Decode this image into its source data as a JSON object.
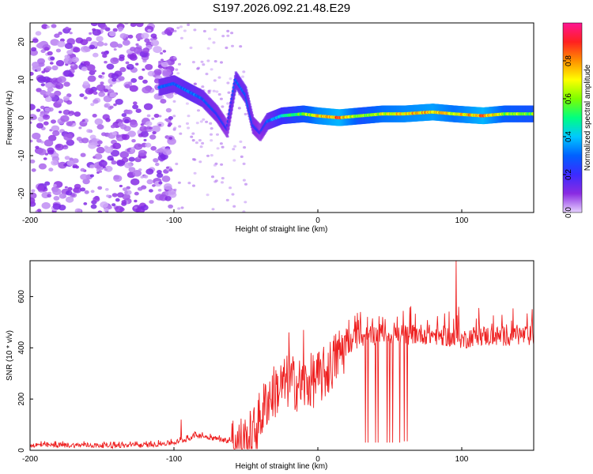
{
  "title": "S197.2026.092.21.48.E29",
  "chart_data": [
    {
      "type": "heatmap",
      "description_kind": "spectrogram",
      "xlabel": "Height of straight line (km)",
      "ylabel": "Frequency (Hz)",
      "xlim": [
        -200,
        150
      ],
      "ylim": [
        -25,
        25
      ],
      "xticks": [
        -200,
        -100,
        0,
        100
      ],
      "yticks": [
        20,
        10,
        0,
        -10,
        -20
      ],
      "colorbar": {
        "label": "Normalized spectral amplitude",
        "range": [
          0,
          1
        ],
        "ticks": [
          "0.0",
          "0.2",
          "0.4",
          "0.6",
          "0.8"
        ],
        "tick_values": [
          0.0,
          0.2,
          0.4,
          0.6,
          0.8
        ],
        "colors": [
          "#e6d2ff",
          "#8a2be2",
          "#3c2bff",
          "#0060ff",
          "#00c8ff",
          "#00ff80",
          "#7cff00",
          "#ffff00",
          "#ff9000",
          "#ff2020",
          "#ff1493"
        ]
      },
      "signal_track": [
        {
          "x": -110,
          "freq": 8,
          "amp": 0.3
        },
        {
          "x": -100,
          "freq": 9,
          "amp": 0.3
        },
        {
          "x": -90,
          "freq": 7,
          "amp": 0.35
        },
        {
          "x": -80,
          "freq": 5,
          "amp": 0.3
        },
        {
          "x": -70,
          "freq": 1,
          "amp": 0.25
        },
        {
          "x": -63,
          "freq": -3,
          "amp": 0.2
        },
        {
          "x": -57,
          "freq": 10,
          "amp": 0.3
        },
        {
          "x": -50,
          "freq": 6,
          "amp": 0.3
        },
        {
          "x": -45,
          "freq": -2,
          "amp": 0.25
        },
        {
          "x": -40,
          "freq": -4,
          "amp": 0.2
        },
        {
          "x": -35,
          "freq": -1,
          "amp": 0.3
        },
        {
          "x": -25,
          "freq": 0.5,
          "amp": 0.45
        },
        {
          "x": -10,
          "freq": 1,
          "amp": 0.6
        },
        {
          "x": 0,
          "freq": 0.5,
          "amp": 0.75
        },
        {
          "x": 15,
          "freq": 0,
          "amp": 0.85
        },
        {
          "x": 30,
          "freq": 0.5,
          "amp": 0.6
        },
        {
          "x": 45,
          "freq": 1,
          "amp": 0.7
        },
        {
          "x": 60,
          "freq": 1,
          "amp": 0.75
        },
        {
          "x": 80,
          "freq": 1.5,
          "amp": 0.8
        },
        {
          "x": 95,
          "freq": 1,
          "amp": 0.7
        },
        {
          "x": 115,
          "freq": 0.5,
          "amp": 0.85
        },
        {
          "x": 130,
          "freq": 1,
          "amp": 0.65
        },
        {
          "x": 150,
          "freq": 1,
          "amp": 0.6
        }
      ]
    },
    {
      "type": "line",
      "xlabel": "Height of straight line (km)",
      "ylabel": "SNR (10 * v/v)",
      "xlim": [
        -200,
        150
      ],
      "ylim": [
        0,
        740
      ],
      "xticks": [
        -200,
        -100,
        0,
        100
      ],
      "yticks": [
        0,
        200,
        400,
        600
      ],
      "line_color": "#ee2020",
      "series": [
        {
          "name": "SNR",
          "x": [
            -200,
            -180,
            -160,
            -140,
            -120,
            -110,
            -100,
            -90,
            -85,
            -80,
            -75,
            -70,
            -65,
            -60,
            -55,
            -50,
            -45,
            -40,
            -35,
            -30,
            -25,
            -20,
            -15,
            -10,
            -5,
            0,
            5,
            10,
            15,
            20,
            25,
            30,
            35,
            40,
            45,
            50,
            55,
            60,
            70,
            80,
            90,
            95,
            97,
            100,
            110,
            120,
            130,
            140,
            150
          ],
          "y": [
            20,
            20,
            20,
            18,
            20,
            25,
            30,
            45,
            60,
            55,
            50,
            45,
            40,
            35,
            30,
            30,
            60,
            130,
            200,
            230,
            250,
            270,
            260,
            250,
            270,
            280,
            300,
            340,
            380,
            410,
            430,
            440,
            450,
            450,
            460,
            455,
            455,
            450,
            455,
            450,
            445,
            430,
            460,
            430,
            450,
            445,
            445,
            450,
            445
          ]
        }
      ],
      "drops": [
        {
          "x": 33,
          "y": 30
        },
        {
          "x": 35,
          "y": 30
        },
        {
          "x": 40,
          "y": 30
        },
        {
          "x": 42,
          "y": 30
        },
        {
          "x": 48,
          "y": 30
        },
        {
          "x": 50,
          "y": 30
        },
        {
          "x": 52,
          "y": 30
        },
        {
          "x": 57,
          "y": 30
        },
        {
          "x": 60,
          "y": 35
        },
        {
          "x": 62,
          "y": 35
        },
        {
          "x": 96,
          "y": 210
        }
      ],
      "peaks": [
        {
          "x": -95,
          "y": 120
        },
        {
          "x": -20,
          "y": 460
        },
        {
          "x": -10,
          "y": 470
        },
        {
          "x": 96,
          "y": 740
        },
        {
          "x": 98,
          "y": 560
        }
      ]
    }
  ]
}
